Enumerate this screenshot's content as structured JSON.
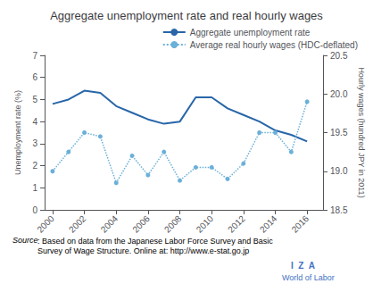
{
  "chart_data": {
    "type": "line",
    "title": "Aggregate unemployment rate and real hourly wages",
    "x": [
      2000,
      2001,
      2002,
      2003,
      2004,
      2005,
      2006,
      2007,
      2008,
      2009,
      2010,
      2011,
      2012,
      2013,
      2014,
      2015,
      2016
    ],
    "series": [
      {
        "name": "Aggregate unemployment rate",
        "color": "#2866a8",
        "marker": "none",
        "line_style": "solid",
        "values": [
          4.8,
          5.0,
          5.4,
          5.3,
          4.7,
          4.4,
          4.1,
          3.9,
          4.0,
          5.1,
          5.1,
          4.6,
          4.3,
          4.0,
          3.6,
          3.4,
          3.1
        ]
      },
      {
        "name": "Average real hourly wages (HDC-deflated)",
        "color": "#6ab0d8",
        "marker": "circle",
        "line_style": "dotted",
        "axis": "y2",
        "values": [
          19.0,
          19.25,
          19.5,
          19.45,
          18.85,
          19.2,
          18.95,
          19.25,
          18.88,
          19.05,
          19.05,
          18.9,
          19.1,
          19.5,
          19.5,
          19.25,
          19.9
        ]
      }
    ],
    "ylabel": "Unemployment rate (%)",
    "y2label": "Hourly wages (hundred JPY in 2011)",
    "xlim": [
      1999.5,
      2017.0
    ],
    "xticks": [
      2000,
      2002,
      2004,
      2006,
      2008,
      2010,
      2012,
      2014,
      2016
    ],
    "ylim": [
      0,
      7
    ],
    "yticks": [
      0,
      1,
      2,
      3,
      4,
      5,
      6,
      7
    ],
    "y2lim": [
      18.5,
      20.5
    ],
    "y2ticks": [
      18.5,
      {
        "value": 19.0,
        "label": "19.0"
      },
      19.5,
      {
        "value": 20.0,
        "label": "20.0"
      },
      20.5
    ],
    "grid": false,
    "legend": "upper right",
    "annotations": [
      {
        "text": "Source"
      },
      {
        "text": ": Based on data from the Japanese Labor Force Survey and Basic\nSurvey of Wage Structure. Online at: http://www.e-stat.go.jp"
      },
      {
        "text": "I  Z  A",
        "color": "#4472c4"
      },
      {
        "text": "World of Labor",
        "color": "#4472c4"
      }
    ]
  }
}
